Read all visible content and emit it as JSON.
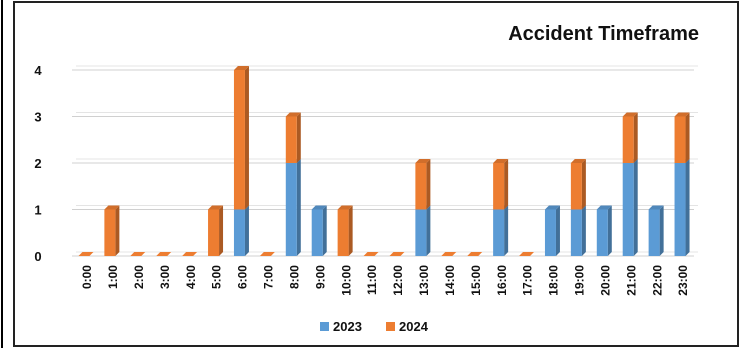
{
  "chart_data": {
    "type": "bar",
    "stacked": true,
    "title": "Accident Timeframe",
    "categories": [
      "0:00",
      "1:00",
      "2:00",
      "3:00",
      "4:00",
      "5:00",
      "6:00",
      "7:00",
      "8:00",
      "9:00",
      "10:00",
      "11:00",
      "12:00",
      "13:00",
      "14:00",
      "15:00",
      "16:00",
      "17:00",
      "18:00",
      "19:00",
      "20:00",
      "21:00",
      "22:00",
      "23:00"
    ],
    "series": [
      {
        "name": "2023",
        "color": "#5b9bd5",
        "values": [
          0,
          0,
          0,
          0,
          0,
          0,
          1,
          0,
          2,
          1,
          0,
          0,
          0,
          1,
          0,
          0,
          1,
          0,
          1,
          1,
          1,
          2,
          1,
          2
        ]
      },
      {
        "name": "2024",
        "color": "#ed7d31",
        "values": [
          0,
          1,
          0,
          0,
          0,
          1,
          3,
          0,
          1,
          0,
          1,
          0,
          0,
          1,
          0,
          0,
          1,
          0,
          0,
          1,
          0,
          1,
          0,
          1
        ]
      }
    ],
    "ylim": [
      0,
      4
    ],
    "yticks": [
      "0",
      "1",
      "2",
      "3",
      "4"
    ],
    "grid": true,
    "legend": "bottom"
  }
}
